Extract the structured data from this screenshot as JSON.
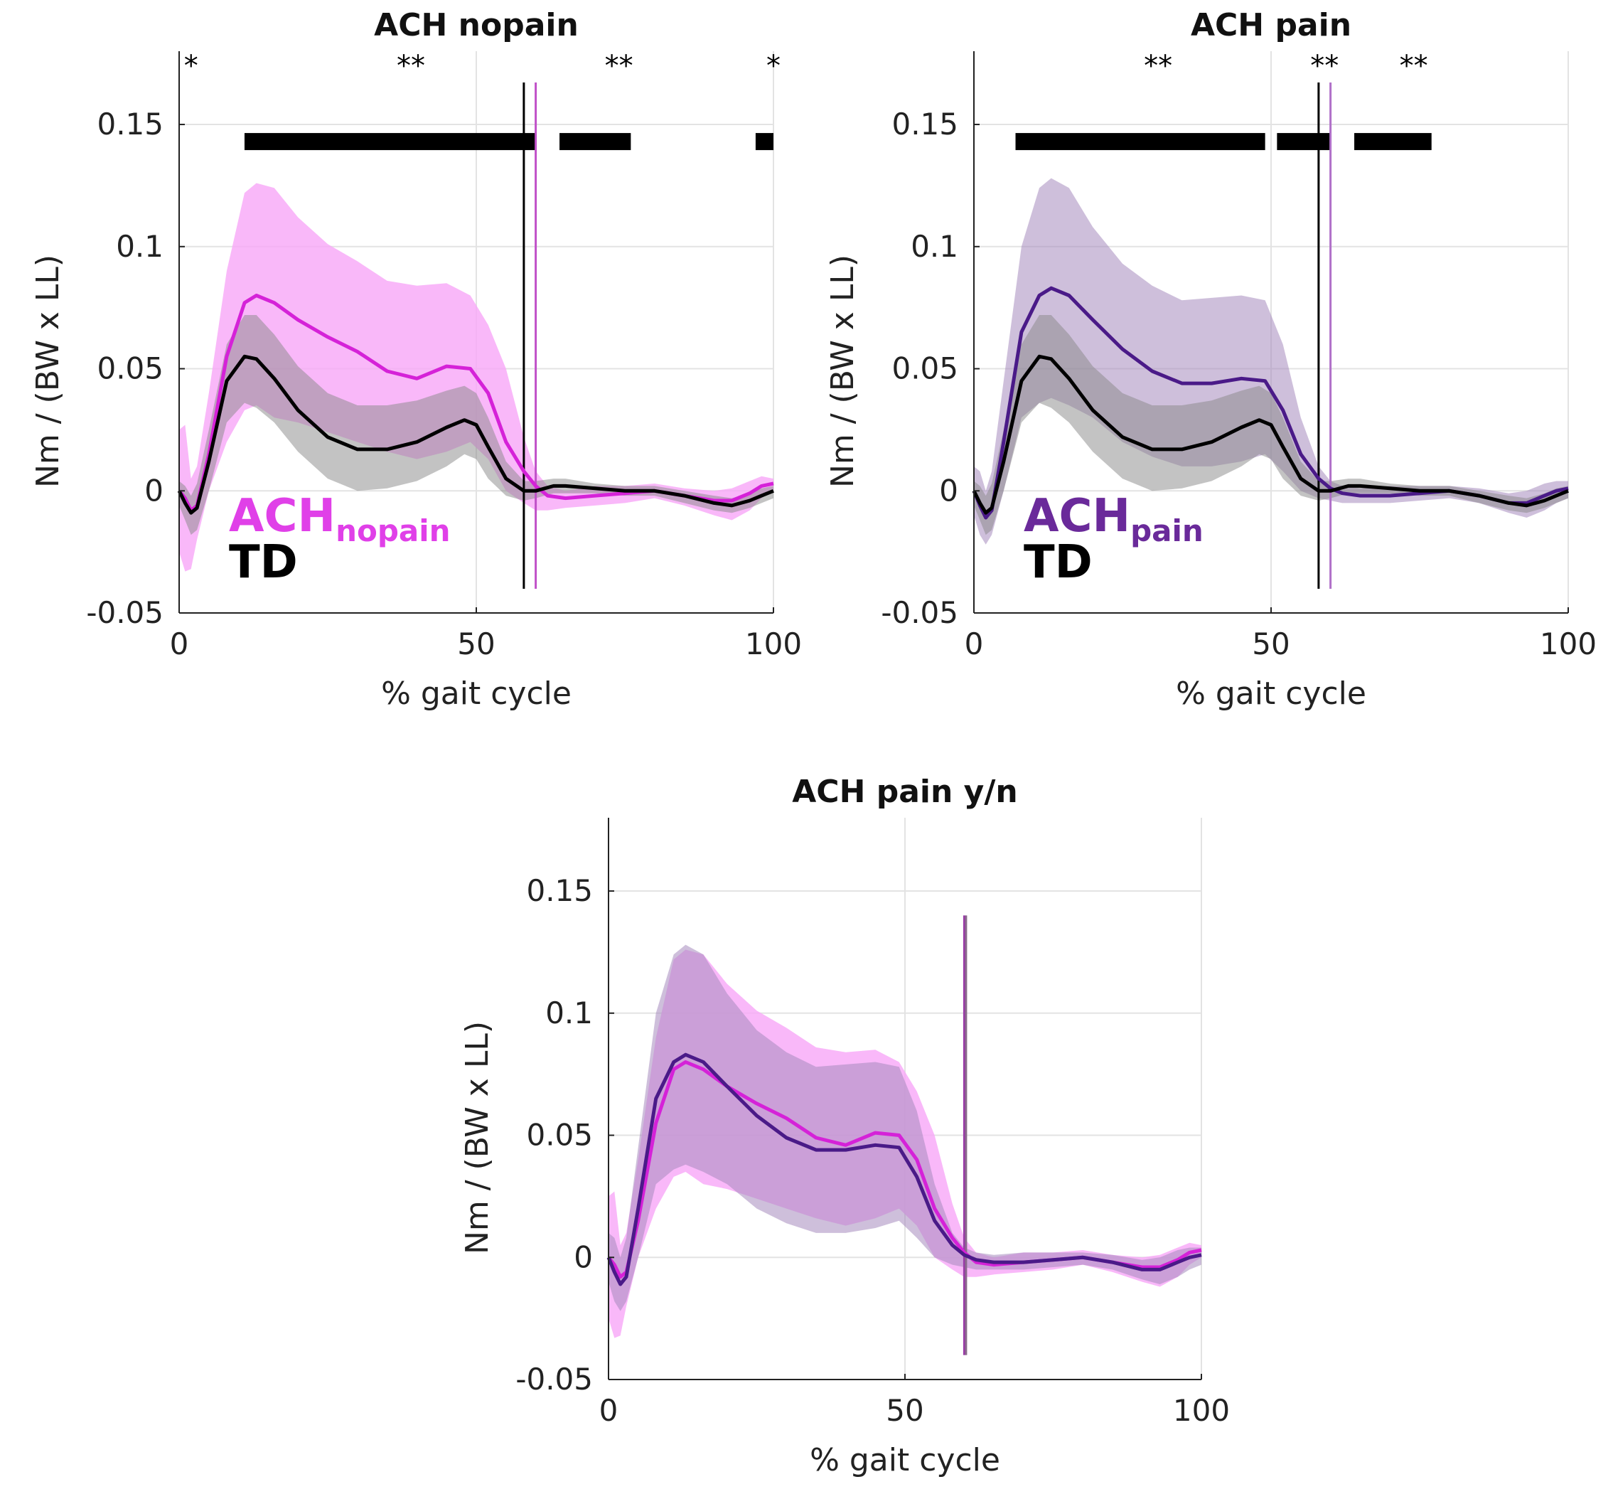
{
  "chart_data": [
    {
      "type": "line",
      "title": "ACH nopain",
      "xlabel": "% gait cycle",
      "ylabel": "Nm / (BW x LL)",
      "xlim": [
        0,
        100
      ],
      "ylim": [
        -0.05,
        0.18
      ],
      "xticks": [
        "0",
        "50",
        "100"
      ],
      "yticks": [
        "-0.05",
        "0",
        "0.05",
        "0.1",
        "0.15"
      ],
      "grid": true,
      "legend": {
        "placement": "bottom-left",
        "entries": [
          {
            "main": "ACH",
            "sub": "nopain",
            "color": "#e040e8"
          },
          {
            "main": "TD",
            "sub": "",
            "color": "#000000"
          }
        ]
      },
      "significance_bars": [
        [
          11,
          60
        ],
        [
          64,
          76
        ],
        [
          97,
          100
        ]
      ],
      "significance_bar_y": 0.143,
      "stars": [
        {
          "x": 2,
          "label": "*"
        },
        {
          "x": 39,
          "label": "**"
        },
        {
          "x": 74,
          "label": "**"
        },
        {
          "x": 100,
          "label": "*"
        }
      ],
      "vlines": [
        {
          "x": 58,
          "color": "#000000"
        },
        {
          "x": 60,
          "color": "#c050c8"
        }
      ],
      "series": [
        {
          "name": "ACH nopain",
          "color": "#d522d8",
          "band_color": "#f8a6f7",
          "band_opacity": 0.8,
          "x": [
            0,
            1,
            2,
            3,
            5,
            8,
            11,
            13,
            16,
            20,
            25,
            30,
            35,
            40,
            45,
            49,
            52,
            55,
            58,
            60,
            62,
            65,
            70,
            75,
            80,
            85,
            90,
            93,
            96,
            98,
            100
          ],
          "mean": [
            0,
            -0.003,
            -0.008,
            -0.006,
            0.015,
            0.055,
            0.077,
            0.08,
            0.077,
            0.07,
            0.063,
            0.057,
            0.049,
            0.046,
            0.051,
            0.05,
            0.04,
            0.02,
            0.008,
            0.002,
            -0.002,
            -0.003,
            -0.002,
            -0.001,
            0.0,
            -0.002,
            -0.004,
            -0.004,
            -0.001,
            0.002,
            0.003
          ],
          "upper": [
            0.025,
            0.027,
            0.005,
            0.01,
            0.04,
            0.09,
            0.122,
            0.126,
            0.124,
            0.112,
            0.101,
            0.094,
            0.086,
            0.084,
            0.085,
            0.08,
            0.068,
            0.05,
            0.022,
            0.008,
            0.002,
            0.0,
            0.002,
            0.002,
            0.003,
            0.001,
            0.0,
            0.001,
            0.004,
            0.006,
            0.005
          ],
          "lower": [
            -0.025,
            -0.033,
            -0.032,
            -0.02,
            0.0,
            0.02,
            0.033,
            0.035,
            0.03,
            0.028,
            0.024,
            0.02,
            0.016,
            0.013,
            0.016,
            0.02,
            0.013,
            0.0,
            -0.005,
            -0.008,
            -0.008,
            -0.007,
            -0.006,
            -0.005,
            -0.003,
            -0.006,
            -0.01,
            -0.012,
            -0.008,
            -0.003,
            0.0
          ]
        },
        {
          "name": "TD",
          "color": "#000000",
          "band_color": "#888888",
          "band_opacity": 0.5,
          "x": [
            0,
            1,
            2,
            3,
            5,
            8,
            11,
            13,
            16,
            20,
            25,
            30,
            35,
            40,
            45,
            48,
            50,
            52,
            55,
            58,
            60,
            63,
            65,
            70,
            75,
            80,
            85,
            90,
            93,
            96,
            98,
            100
          ],
          "mean": [
            0,
            -0.005,
            -0.009,
            -0.007,
            0.012,
            0.045,
            0.055,
            0.054,
            0.046,
            0.033,
            0.022,
            0.017,
            0.017,
            0.02,
            0.026,
            0.029,
            0.027,
            0.018,
            0.005,
            0.0,
            0.0,
            0.002,
            0.002,
            0.001,
            0.0,
            0.0,
            -0.002,
            -0.005,
            -0.006,
            -0.004,
            -0.002,
            0.0
          ],
          "upper": [
            0.004,
            0.002,
            -0.002,
            0.003,
            0.025,
            0.06,
            0.072,
            0.072,
            0.064,
            0.051,
            0.04,
            0.035,
            0.035,
            0.037,
            0.041,
            0.043,
            0.04,
            0.03,
            0.012,
            0.004,
            0.004,
            0.005,
            0.005,
            0.003,
            0.002,
            0.002,
            0.0,
            -0.002,
            -0.003,
            -0.001,
            0.001,
            0.002
          ],
          "lower": [
            -0.006,
            -0.012,
            -0.018,
            -0.016,
            0.0,
            0.028,
            0.036,
            0.034,
            0.028,
            0.016,
            0.005,
            0.0,
            0.001,
            0.004,
            0.01,
            0.015,
            0.013,
            0.005,
            -0.002,
            -0.004,
            -0.003,
            -0.001,
            -0.001,
            -0.001,
            -0.002,
            -0.002,
            -0.005,
            -0.008,
            -0.009,
            -0.007,
            -0.005,
            -0.003
          ]
        }
      ]
    },
    {
      "type": "line",
      "title": "ACH pain",
      "xlabel": "% gait cycle",
      "ylabel": "Nm / (BW x LL)",
      "xlim": [
        0,
        100
      ],
      "ylim": [
        -0.05,
        0.18
      ],
      "xticks": [
        "0",
        "50",
        "100"
      ],
      "yticks": [
        "-0.05",
        "0",
        "0.05",
        "0.1",
        "0.15"
      ],
      "grid": true,
      "legend": {
        "placement": "bottom-left",
        "entries": [
          {
            "main": "ACH",
            "sub": "pain",
            "color": "#6a2a9a"
          },
          {
            "main": "TD",
            "sub": "",
            "color": "#000000"
          }
        ]
      },
      "significance_bars": [
        [
          7,
          49
        ],
        [
          51,
          60
        ],
        [
          64,
          77
        ]
      ],
      "significance_bar_y": 0.143,
      "stars": [
        {
          "x": 31,
          "label": "**"
        },
        {
          "x": 59,
          "label": "**"
        },
        {
          "x": 74,
          "label": "**"
        }
      ],
      "vlines": [
        {
          "x": 58,
          "color": "#000000"
        },
        {
          "x": 60,
          "color": "#b070c8"
        }
      ],
      "series": [
        {
          "name": "ACH pain",
          "color": "#4a1a88",
          "band_color": "#a58bbd",
          "band_opacity": 0.55,
          "x": [
            0,
            1,
            2,
            3,
            5,
            8,
            11,
            13,
            16,
            20,
            25,
            30,
            35,
            40,
            45,
            49,
            52,
            55,
            58,
            60,
            62,
            65,
            70,
            75,
            80,
            85,
            90,
            93,
            96,
            98,
            100
          ],
          "mean": [
            0,
            -0.006,
            -0.011,
            -0.008,
            0.02,
            0.065,
            0.08,
            0.083,
            0.08,
            0.07,
            0.058,
            0.049,
            0.044,
            0.044,
            0.046,
            0.045,
            0.033,
            0.015,
            0.005,
            0.001,
            -0.001,
            -0.002,
            -0.002,
            -0.001,
            0.0,
            -0.002,
            -0.005,
            -0.005,
            -0.002,
            0.0,
            0.001
          ],
          "upper": [
            0.01,
            0.008,
            0.0,
            0.008,
            0.045,
            0.1,
            0.124,
            0.128,
            0.124,
            0.108,
            0.093,
            0.084,
            0.078,
            0.079,
            0.08,
            0.078,
            0.06,
            0.03,
            0.01,
            0.004,
            0.002,
            0.001,
            0.002,
            0.002,
            0.002,
            0.001,
            -0.001,
            0.0,
            0.003,
            0.004,
            0.004
          ],
          "lower": [
            -0.01,
            -0.018,
            -0.022,
            -0.018,
            0.0,
            0.03,
            0.036,
            0.038,
            0.035,
            0.03,
            0.02,
            0.014,
            0.01,
            0.01,
            0.012,
            0.015,
            0.008,
            0.0,
            -0.003,
            -0.004,
            -0.005,
            -0.005,
            -0.005,
            -0.004,
            -0.003,
            -0.005,
            -0.009,
            -0.011,
            -0.008,
            -0.005,
            -0.003
          ]
        },
        {
          "name": "TD",
          "color": "#000000",
          "band_color": "#888888",
          "band_opacity": 0.5,
          "x": [
            0,
            1,
            2,
            3,
            5,
            8,
            11,
            13,
            16,
            20,
            25,
            30,
            35,
            40,
            45,
            48,
            50,
            52,
            55,
            58,
            60,
            63,
            65,
            70,
            75,
            80,
            85,
            90,
            93,
            96,
            98,
            100
          ],
          "mean": [
            0,
            -0.005,
            -0.009,
            -0.007,
            0.012,
            0.045,
            0.055,
            0.054,
            0.046,
            0.033,
            0.022,
            0.017,
            0.017,
            0.02,
            0.026,
            0.029,
            0.027,
            0.018,
            0.005,
            0.0,
            0.0,
            0.002,
            0.002,
            0.001,
            0.0,
            0.0,
            -0.002,
            -0.005,
            -0.006,
            -0.004,
            -0.002,
            0.0
          ],
          "upper": [
            0.004,
            0.002,
            -0.002,
            0.003,
            0.025,
            0.06,
            0.072,
            0.072,
            0.064,
            0.051,
            0.04,
            0.035,
            0.035,
            0.037,
            0.041,
            0.043,
            0.04,
            0.03,
            0.012,
            0.004,
            0.004,
            0.005,
            0.005,
            0.003,
            0.002,
            0.002,
            0.0,
            -0.002,
            -0.003,
            -0.001,
            0.001,
            0.002
          ],
          "lower": [
            -0.006,
            -0.012,
            -0.018,
            -0.016,
            0.0,
            0.028,
            0.036,
            0.034,
            0.028,
            0.016,
            0.005,
            0.0,
            0.001,
            0.004,
            0.01,
            0.015,
            0.013,
            0.005,
            -0.002,
            -0.004,
            -0.003,
            -0.001,
            -0.001,
            -0.001,
            -0.002,
            -0.002,
            -0.005,
            -0.008,
            -0.009,
            -0.007,
            -0.005,
            -0.003
          ]
        }
      ]
    },
    {
      "type": "line",
      "title": "ACH pain y/n",
      "xlabel": "% gait cycle",
      "ylabel": "Nm / (BW x LL)",
      "xlim": [
        0,
        100
      ],
      "ylim": [
        -0.05,
        0.18
      ],
      "xticks": [
        "0",
        "50",
        "100"
      ],
      "yticks": [
        "-0.05",
        "0",
        "0.05",
        "0.1",
        "0.15"
      ],
      "grid": true,
      "legend": null,
      "significance_bars": [],
      "stars": [],
      "vlines": [
        {
          "x": 60,
          "color": "#9a3aa8",
          "y0": -0.04,
          "y1": 0.14
        },
        {
          "x": 60.3,
          "color": "#8a6a8c",
          "y0": -0.04,
          "y1": 0.14
        }
      ],
      "series": [
        {
          "name": "ACH nopain",
          "color": "#d522d8",
          "band_color": "#f8a6f7",
          "band_opacity": 0.8,
          "x": [
            0,
            1,
            2,
            3,
            5,
            8,
            11,
            13,
            16,
            20,
            25,
            30,
            35,
            40,
            45,
            49,
            52,
            55,
            58,
            60,
            62,
            65,
            70,
            75,
            80,
            85,
            90,
            93,
            96,
            98,
            100
          ],
          "mean": [
            0,
            -0.003,
            -0.008,
            -0.006,
            0.015,
            0.055,
            0.077,
            0.08,
            0.077,
            0.07,
            0.063,
            0.057,
            0.049,
            0.046,
            0.051,
            0.05,
            0.04,
            0.02,
            0.008,
            0.002,
            -0.002,
            -0.003,
            -0.002,
            -0.001,
            0.0,
            -0.002,
            -0.004,
            -0.004,
            -0.001,
            0.002,
            0.003
          ],
          "upper": [
            0.025,
            0.027,
            0.005,
            0.01,
            0.04,
            0.09,
            0.122,
            0.126,
            0.124,
            0.112,
            0.101,
            0.094,
            0.086,
            0.084,
            0.085,
            0.08,
            0.068,
            0.05,
            0.022,
            0.008,
            0.002,
            0.0,
            0.002,
            0.002,
            0.003,
            0.001,
            0.0,
            0.001,
            0.004,
            0.006,
            0.005
          ],
          "lower": [
            -0.025,
            -0.033,
            -0.032,
            -0.02,
            0.0,
            0.02,
            0.033,
            0.035,
            0.03,
            0.028,
            0.024,
            0.02,
            0.016,
            0.013,
            0.016,
            0.02,
            0.013,
            0.0,
            -0.005,
            -0.008,
            -0.008,
            -0.007,
            -0.006,
            -0.005,
            -0.003,
            -0.006,
            -0.01,
            -0.012,
            -0.008,
            -0.003,
            0.0
          ]
        },
        {
          "name": "ACH pain",
          "color": "#4a1a88",
          "band_color": "#a58bbd",
          "band_opacity": 0.55,
          "x": [
            0,
            1,
            2,
            3,
            5,
            8,
            11,
            13,
            16,
            20,
            25,
            30,
            35,
            40,
            45,
            49,
            52,
            55,
            58,
            60,
            62,
            65,
            70,
            75,
            80,
            85,
            90,
            93,
            96,
            98,
            100
          ],
          "mean": [
            0,
            -0.006,
            -0.011,
            -0.008,
            0.02,
            0.065,
            0.08,
            0.083,
            0.08,
            0.07,
            0.058,
            0.049,
            0.044,
            0.044,
            0.046,
            0.045,
            0.033,
            0.015,
            0.005,
            0.001,
            -0.001,
            -0.002,
            -0.002,
            -0.001,
            0.0,
            -0.002,
            -0.005,
            -0.005,
            -0.002,
            0.0,
            0.001
          ],
          "upper": [
            0.01,
            0.008,
            0.0,
            0.008,
            0.045,
            0.1,
            0.124,
            0.128,
            0.124,
            0.108,
            0.093,
            0.084,
            0.078,
            0.079,
            0.08,
            0.078,
            0.06,
            0.03,
            0.01,
            0.004,
            0.002,
            0.001,
            0.002,
            0.002,
            0.002,
            0.001,
            -0.001,
            0.0,
            0.003,
            0.004,
            0.004
          ],
          "lower": [
            -0.01,
            -0.018,
            -0.022,
            -0.018,
            0.0,
            0.03,
            0.036,
            0.038,
            0.035,
            0.03,
            0.02,
            0.014,
            0.01,
            0.01,
            0.012,
            0.015,
            0.008,
            0.0,
            -0.003,
            -0.004,
            -0.005,
            -0.005,
            -0.005,
            -0.004,
            -0.003,
            -0.005,
            -0.009,
            -0.011,
            -0.008,
            -0.005,
            -0.003
          ]
        }
      ]
    }
  ]
}
